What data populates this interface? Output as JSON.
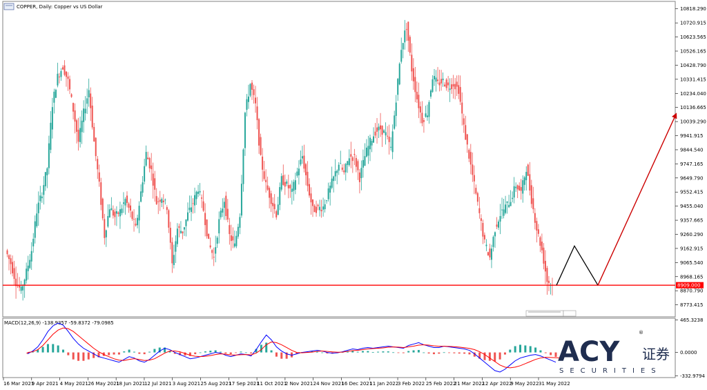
{
  "chart_data": {
    "type": "candlestick",
    "symbol_icon": "chart-window-icon",
    "title": "COPPER, Daily:  Copper vs US Dollar",
    "price_axis": {
      "ylim": [
        8700,
        10860
      ],
      "ticks": [
        "10818.290",
        "10720.915",
        "10623.565",
        "10526.165",
        "10428.790",
        "10331.415",
        "10234.040",
        "10136.665",
        "10039.290",
        "9941.915",
        "9844.540",
        "9747.165",
        "9649.790",
        "9552.415",
        "9455.040",
        "9357.665",
        "9260.290",
        "9162.915",
        "9065.540",
        "8968.165",
        "8870.790",
        "8773.415"
      ]
    },
    "support_level": {
      "value": 8909,
      "label": "8909.000",
      "color": "#ff0000"
    },
    "date_ticks": [
      "16 Mar 2021",
      "9 Apr 2021",
      "4 May 2021",
      "26 May 2021",
      "18 Jun 2021",
      "12 Jul 2021",
      "3 Aug 2021",
      "25 Aug 2021",
      "17 Sep 2021",
      "11 Oct 2021",
      "2 Nov 2021",
      "24 Nov 2021",
      "16 Dec 2021",
      "11 Jan 2022",
      "3 Feb 2022",
      "25 Feb 2022",
      "21 Mar 2022",
      "12 Apr 2022",
      "9 May 2022",
      "31 May 2022"
    ],
    "series": [
      {
        "name": "Copper vs US Dollar",
        "kind": "close-path",
        "values": [
          9150,
          9060,
          8930,
          8870,
          9000,
          9150,
          9420,
          9550,
          9720,
          10160,
          10350,
          10420,
          10320,
          10120,
          9900,
          10100,
          10260,
          9900,
          9600,
          9250,
          9450,
          9380,
          9420,
          9500,
          9410,
          9300,
          9550,
          9820,
          9700,
          9480,
          9520,
          9450,
          9050,
          9300,
          9280,
          9400,
          9480,
          9580,
          9430,
          9200,
          9100,
          9350,
          9500,
          9250,
          9180,
          9400,
          10100,
          10300,
          10150,
          9780,
          9600,
          9500,
          9400,
          9640,
          9600,
          9550,
          9690,
          9800,
          9600,
          9430,
          9440,
          9450,
          9550,
          9650,
          9750,
          9680,
          9800,
          9790,
          9650,
          9800,
          9900,
          9970,
          9990,
          9950,
          9850,
          10200,
          10550,
          10700,
          10400,
          10200,
          10050,
          10100,
          10350,
          10300,
          10320,
          10280,
          10300,
          10260,
          10000,
          9800,
          9600,
          9400,
          9200,
          9100,
          9300,
          9400,
          9450,
          9500,
          9600,
          9550,
          9720,
          9500,
          9300,
          9150,
          8940,
          8909
        ]
      },
      {
        "name": "Projection",
        "kind": "annotation",
        "color": "#000000",
        "points": [
          8909,
          9180,
          8909
        ]
      },
      {
        "name": "Target arrow",
        "kind": "annotation",
        "color": "#cc0000",
        "points": [
          8909,
          10100
        ]
      }
    ],
    "macd": {
      "label": "MACD(12,26,9) -138.9357 -59.8372 -79.0985",
      "axis_ticks": [
        "465.3238",
        "0.0000",
        "-332.9794"
      ],
      "ylim": [
        -340,
        470
      ],
      "main_color": "#0000ff",
      "signal_color": "#ff0000",
      "histogram_up_color": "#26a69a",
      "histogram_down_color": "#ef5350",
      "main": [
        -20,
        20,
        80,
        180,
        300,
        380,
        420,
        390,
        300,
        200,
        120,
        60,
        20,
        -20,
        -60,
        -80,
        -100,
        -120,
        -140,
        -100,
        -60,
        -80,
        -120,
        -140,
        -100,
        -40,
        20,
        60,
        40,
        0,
        -30,
        -60,
        -90,
        -80,
        -60,
        -40,
        -20,
        0,
        -10,
        -40,
        -60,
        -40,
        -20,
        -30,
        -50,
        40,
        150,
        250,
        180,
        80,
        20,
        -20,
        -40,
        -20,
        0,
        10,
        20,
        30,
        20,
        0,
        -10,
        -5,
        10,
        30,
        50,
        40,
        60,
        70,
        60,
        70,
        80,
        90,
        80,
        70,
        60,
        100,
        120,
        140,
        110,
        90,
        70,
        70,
        90,
        80,
        70,
        60,
        50,
        30,
        -20,
        -80,
        -140,
        -200,
        -260,
        -280,
        -240,
        -180,
        -120,
        -80,
        -60,
        -40,
        -30,
        -50,
        -80,
        -110,
        -139
      ],
      "signal": [
        0,
        10,
        40,
        100,
        180,
        260,
        320,
        350,
        340,
        300,
        240,
        180,
        120,
        60,
        10,
        -30,
        -60,
        -90,
        -110,
        -115,
        -100,
        -90,
        -100,
        -115,
        -110,
        -90,
        -50,
        -10,
        20,
        20,
        10,
        -15,
        -40,
        -55,
        -60,
        -55,
        -45,
        -30,
        -20,
        -25,
        -35,
        -38,
        -32,
        -30,
        -35,
        -10,
        40,
        110,
        150,
        140,
        110,
        70,
        30,
        0,
        -5,
        0,
        5,
        15,
        20,
        15,
        8,
        3,
        5,
        15,
        25,
        30,
        40,
        50,
        55,
        60,
        65,
        75,
        78,
        76,
        70,
        80,
        90,
        105,
        110,
        105,
        95,
        88,
        88,
        86,
        82,
        76,
        68,
        58,
        40,
        10,
        -30,
        -80,
        -130,
        -180,
        -210,
        -220,
        -210,
        -190,
        -160,
        -130,
        -100,
        -80,
        -70,
        -72,
        -76,
        -79
      ]
    },
    "logo": {
      "name": "acy-securities-logo",
      "brand": "ACY",
      "subtitle": "SECURITIES",
      "chinese": "证券",
      "registered": "®",
      "color": "#1f2d4f"
    },
    "grid": false
  }
}
